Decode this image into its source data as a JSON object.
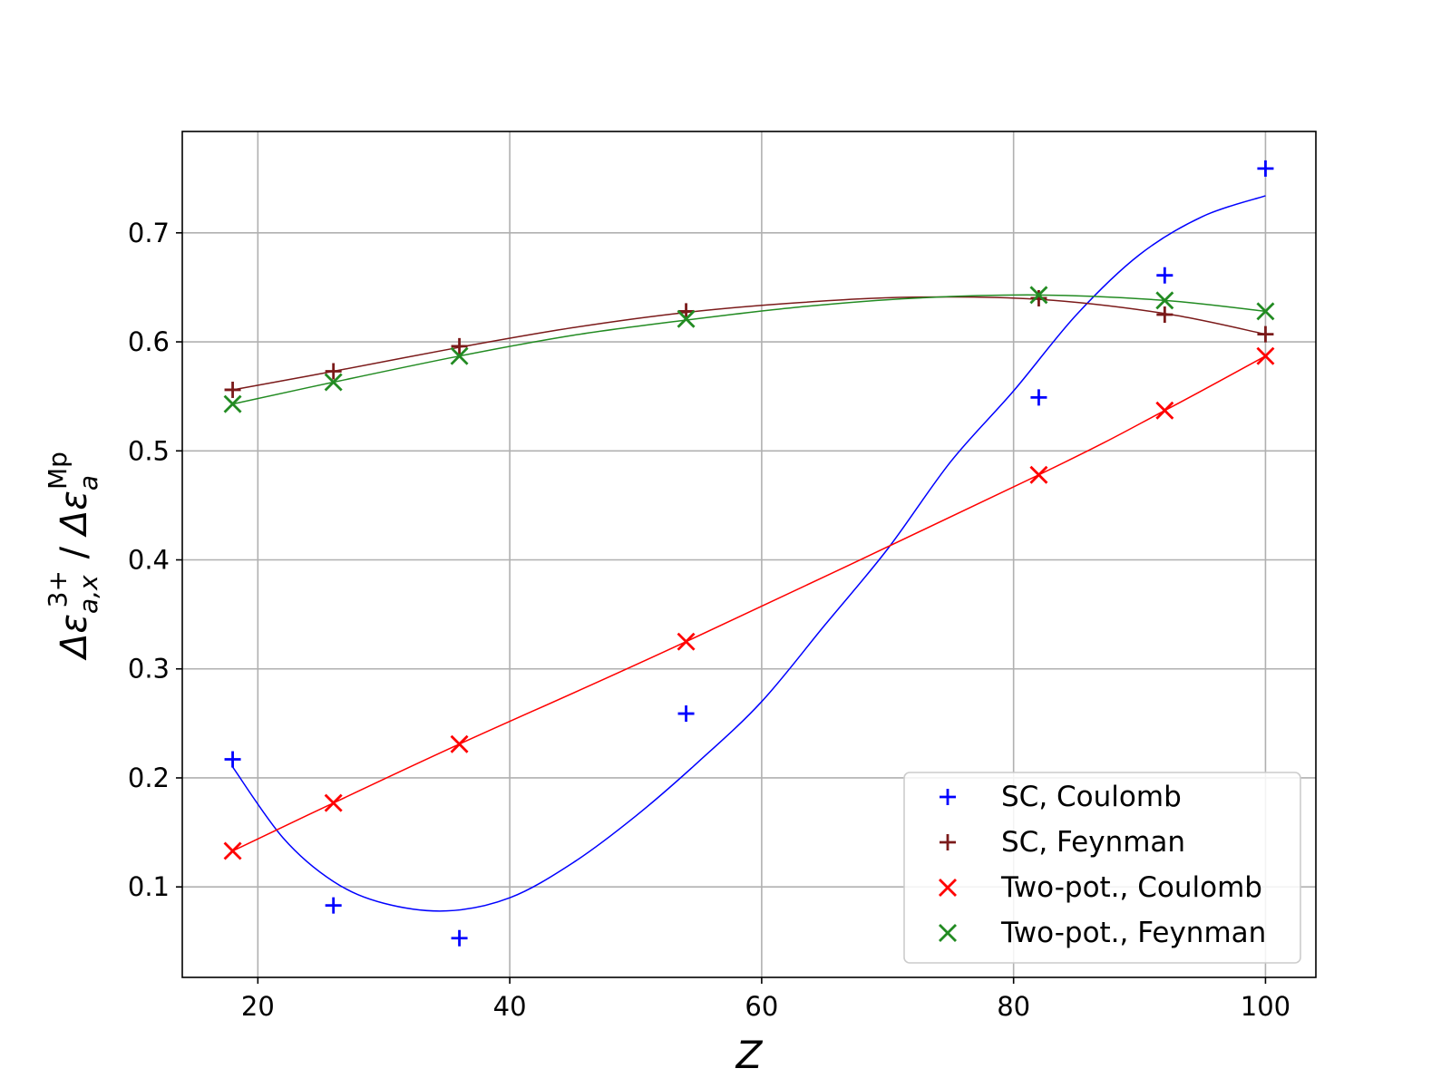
{
  "chart_data": {
    "type": "scatter",
    "xlabel": "Z",
    "ylabel": {
      "numerator": "Δε",
      "numerator_sub": "a,x",
      "numerator_sup": "3+",
      "separator": " / ",
      "denominator": "Δε",
      "denominator_sub": "a",
      "denominator_sup": "Mp"
    },
    "xlim": [
      14,
      104
    ],
    "ylim": [
      0.017,
      0.793
    ],
    "xticks": [
      20,
      40,
      60,
      80,
      100
    ],
    "yticks": [
      0.1,
      0.2,
      0.3,
      0.4,
      0.5,
      0.6,
      0.7
    ],
    "ytick_labels": [
      "0.1",
      "0.2",
      "0.3",
      "0.4",
      "0.5",
      "0.6",
      "0.7"
    ],
    "grid": true,
    "legend_position": "bottom-right",
    "series": [
      {
        "name": "SC, Coulomb",
        "marker": "plus",
        "color": "#0000ff",
        "x": [
          18,
          26,
          36,
          54,
          82,
          92,
          100
        ],
        "y": [
          0.217,
          0.083,
          0.053,
          0.259,
          0.549,
          0.661,
          0.759
        ],
        "fit": [
          [
            18,
            0.21
          ],
          [
            22,
            0.145
          ],
          [
            26,
            0.105
          ],
          [
            30,
            0.085
          ],
          [
            35,
            0.078
          ],
          [
            40,
            0.09
          ],
          [
            45,
            0.122
          ],
          [
            50,
            0.165
          ],
          [
            55,
            0.215
          ],
          [
            60,
            0.27
          ],
          [
            65,
            0.34
          ],
          [
            70,
            0.41
          ],
          [
            75,
            0.49
          ],
          [
            80,
            0.555
          ],
          [
            85,
            0.625
          ],
          [
            90,
            0.68
          ],
          [
            95,
            0.715
          ],
          [
            100,
            0.734
          ]
        ]
      },
      {
        "name": "SC, Feynman",
        "marker": "plus",
        "color": "#7b1a1a",
        "x": [
          18,
          26,
          36,
          54,
          82,
          92,
          100
        ],
        "y": [
          0.556,
          0.573,
          0.596,
          0.628,
          0.64,
          0.625,
          0.607
        ],
        "fit": [
          [
            18,
            0.556
          ],
          [
            26,
            0.573
          ],
          [
            36,
            0.595
          ],
          [
            45,
            0.613
          ],
          [
            54,
            0.627
          ],
          [
            63,
            0.636
          ],
          [
            72,
            0.641
          ],
          [
            82,
            0.639
          ],
          [
            92,
            0.626
          ],
          [
            100,
            0.607
          ]
        ]
      },
      {
        "name": "Two-pot., Coulomb",
        "marker": "x",
        "color": "#ff0000",
        "x": [
          18,
          26,
          36,
          54,
          82,
          92,
          100
        ],
        "y": [
          0.133,
          0.177,
          0.231,
          0.325,
          0.478,
          0.537,
          0.587
        ],
        "fit": [
          [
            18,
            0.133
          ],
          [
            26,
            0.177
          ],
          [
            36,
            0.231
          ],
          [
            54,
            0.325
          ],
          [
            82,
            0.478
          ],
          [
            92,
            0.537
          ],
          [
            100,
            0.587
          ]
        ]
      },
      {
        "name": "Two-pot., Feynman",
        "marker": "x",
        "color": "#228b22",
        "x": [
          18,
          26,
          36,
          54,
          82,
          92,
          100
        ],
        "y": [
          0.543,
          0.563,
          0.587,
          0.621,
          0.643,
          0.638,
          0.628
        ],
        "fit": [
          [
            18,
            0.543
          ],
          [
            26,
            0.563
          ],
          [
            36,
            0.587
          ],
          [
            45,
            0.606
          ],
          [
            54,
            0.62
          ],
          [
            63,
            0.632
          ],
          [
            72,
            0.64
          ],
          [
            82,
            0.643
          ],
          [
            92,
            0.638
          ],
          [
            100,
            0.628
          ]
        ]
      }
    ]
  }
}
